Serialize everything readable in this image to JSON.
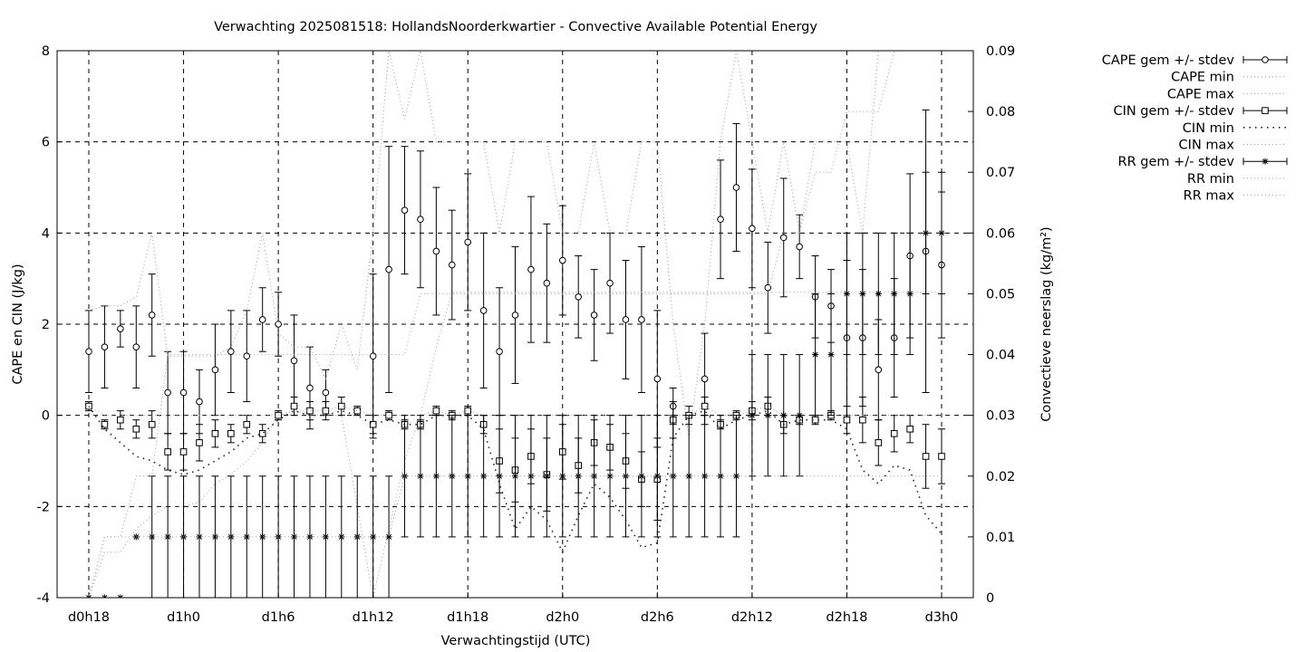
{
  "chart_data": {
    "type": "line",
    "title": "Verwachting 2025081518: HollandsNoorderkwartier - Convective Available Potential Energy",
    "xlabel": "Verwachtingstijd (UTC)",
    "ylabel": "CAPE en CIN (J/kg)",
    "y2label": "Convectieve neerslag (kg/m²)",
    "xlim": [
      0,
      55
    ],
    "ylim": [
      -4,
      8
    ],
    "y2lim": [
      0,
      0.09
    ],
    "grid": true,
    "legend_position": "outside-right",
    "x_ticks": [
      {
        "x": 0,
        "label": "d0h18"
      },
      {
        "x": 6,
        "label": "d1h0"
      },
      {
        "x": 12,
        "label": "d1h6"
      },
      {
        "x": 18,
        "label": "d1h12"
      },
      {
        "x": 24,
        "label": "d1h18"
      },
      {
        "x": 30,
        "label": "d2h0"
      },
      {
        "x": 36,
        "label": "d2h6"
      },
      {
        "x": 42,
        "label": "d2h12"
      },
      {
        "x": 48,
        "label": "d2h18"
      },
      {
        "x": 54,
        "label": "d3h0"
      }
    ],
    "y_ticks": [
      -4,
      -2,
      0,
      2,
      4,
      6,
      8
    ],
    "y2_ticks": [
      {
        "v": 0,
        "label": "0"
      },
      {
        "v": 0.01,
        "label": "0.01"
      },
      {
        "v": 0.02,
        "label": "0.02"
      },
      {
        "v": 0.03,
        "label": "0.03"
      },
      {
        "v": 0.04,
        "label": "0.04"
      },
      {
        "v": 0.05,
        "label": "0.05"
      },
      {
        "v": 0.06,
        "label": "0.06"
      },
      {
        "v": 0.07,
        "label": "0.07"
      },
      {
        "v": 0.08,
        "label": "0.08"
      },
      {
        "v": 0.09,
        "label": "0.09"
      }
    ],
    "x": [
      0,
      1,
      2,
      3,
      4,
      5,
      6,
      7,
      8,
      9,
      10,
      11,
      12,
      13,
      14,
      15,
      16,
      17,
      18,
      19,
      20,
      21,
      22,
      23,
      24,
      25,
      26,
      27,
      28,
      29,
      30,
      31,
      32,
      33,
      34,
      35,
      36,
      37,
      38,
      39,
      40,
      41,
      42,
      43,
      44,
      45,
      46,
      47,
      48,
      49,
      50,
      51,
      52,
      53,
      54
    ],
    "series": [
      {
        "name": "CAPE gem +/- stdev",
        "style": "errorbars-circle",
        "axis": "y",
        "values": [
          1.4,
          1.5,
          1.9,
          1.5,
          2.2,
          0.5,
          0.5,
          0.3,
          1.0,
          1.4,
          1.3,
          2.1,
          2.0,
          1.2,
          0.6,
          0.5,
          null,
          null,
          1.3,
          3.2,
          4.5,
          4.3,
          3.6,
          3.3,
          3.8,
          2.3,
          1.4,
          2.2,
          3.2,
          2.9,
          3.4,
          2.6,
          2.2,
          2.9,
          2.1,
          2.1,
          0.8,
          0.2,
          null,
          0.8,
          4.3,
          5.0,
          4.1,
          2.8,
          3.9,
          3.7,
          2.6,
          2.4,
          1.7,
          1.7,
          1.0,
          1.7,
          3.5,
          3.6,
          3.3
        ],
        "errors": [
          0.9,
          0.9,
          0.4,
          0.9,
          0.9,
          0.9,
          0.9,
          0.7,
          1.0,
          0.9,
          1.0,
          0.7,
          0.7,
          1.0,
          0.9,
          0.5,
          null,
          null,
          1.8,
          2.7,
          1.4,
          1.5,
          1.4,
          1.2,
          1.5,
          1.7,
          1.4,
          1.5,
          1.6,
          1.3,
          1.2,
          0.9,
          1.0,
          1.1,
          1.3,
          1.6,
          1.5,
          0.4,
          null,
          1.0,
          1.3,
          1.4,
          1.3,
          1.0,
          1.3,
          0.7,
          0.9,
          0.8,
          1.7,
          1.5,
          1.1,
          1.3,
          1.8,
          3.1,
          1.6
        ]
      },
      {
        "name": "CAPE min",
        "style": "dotted",
        "axis": "y",
        "values": [
          -4,
          -3,
          -3,
          -2.5,
          -2.2,
          -2.0,
          -2.0,
          -1.9,
          -1.5,
          -1.3,
          -1.0,
          -0.6,
          0.0,
          0.1,
          0.0,
          0.0,
          0.0,
          -2.0,
          -4.0,
          -2.5,
          -1.0,
          0.0,
          1.5,
          2.7,
          2.7,
          2.7,
          2.7,
          2.7,
          2.7,
          2.7,
          2.7,
          2.7,
          2.7,
          2.7,
          2.7,
          2.7,
          2.7,
          2.7,
          2.7,
          2.7,
          2.7,
          2.7,
          2.7,
          2.7,
          2.7,
          2.7,
          2.7,
          2.7,
          2.7,
          2.7,
          2.7,
          2.7,
          2.7,
          2.7,
          2.7
        ]
      },
      {
        "name": "CAPE max",
        "style": "dotted",
        "axis": "y",
        "values": [
          2.3,
          2.4,
          2.4,
          2.6,
          4.0,
          1.3,
          1.3,
          1.3,
          1.3,
          1.5,
          2.3,
          4.0,
          1.8,
          1.5,
          1.5,
          0.8,
          2.0,
          1.0,
          4.0,
          8.0,
          6.5,
          8.0,
          6.0,
          6.0,
          6.0,
          6.0,
          4.0,
          6.0,
          6.0,
          6.0,
          4.0,
          4.0,
          6.0,
          4.0,
          4.0,
          6.0,
          6.0,
          2.0,
          -0.5,
          2.0,
          6.0,
          8.0,
          6.0,
          4.0,
          6.0,
          4.0,
          6.0,
          6.0,
          6.0,
          4.0,
          8.0,
          8.0,
          8.0,
          8.0,
          8.0
        ]
      },
      {
        "name": "CIN gem +/- stdev",
        "style": "errorbars-square",
        "axis": "y",
        "values": [
          0.2,
          -0.2,
          -0.1,
          -0.3,
          -0.2,
          -0.8,
          -0.8,
          -0.6,
          -0.4,
          -0.4,
          -0.2,
          -0.4,
          0.0,
          0.2,
          0.1,
          0.1,
          0.2,
          0.1,
          -0.2,
          0.0,
          -0.2,
          -0.2,
          0.1,
          0.0,
          0.1,
          -0.2,
          -1.0,
          -1.2,
          -0.9,
          -1.3,
          -0.8,
          -1.1,
          -0.6,
          -0.7,
          -1.0,
          -1.4,
          -1.4,
          -0.1,
          0.0,
          0.2,
          -0.2,
          0.0,
          0.1,
          0.2,
          -0.2,
          -0.1,
          -0.1,
          0.0,
          -0.1,
          -0.1,
          -0.6,
          -0.4,
          -0.3,
          -0.9,
          -0.9
        ],
        "errors": [
          0.1,
          0.1,
          0.2,
          0.2,
          0.3,
          0.4,
          0.4,
          0.4,
          0.3,
          0.2,
          0.2,
          0.2,
          0.1,
          0.2,
          0.2,
          0.2,
          0.2,
          0.1,
          0.2,
          0.1,
          0.1,
          0.1,
          0.1,
          0.1,
          0.1,
          0.2,
          0.7,
          0.7,
          0.6,
          0.8,
          0.6,
          0.6,
          0.5,
          0.5,
          0.6,
          0.6,
          0.9,
          0.4,
          0.2,
          0.2,
          0.1,
          0.1,
          0.2,
          0.2,
          0.2,
          0.1,
          0.1,
          0.1,
          0.3,
          0.5,
          0.5,
          0.4,
          0.3,
          0.7,
          0.6
        ]
      },
      {
        "name": "CIN min",
        "style": "dotted-sparse",
        "axis": "y",
        "values": [
          0.2,
          -0.3,
          -0.6,
          -0.9,
          -1.0,
          -1.2,
          -1.3,
          -1.2,
          -1.0,
          -0.8,
          -0.5,
          -0.4,
          -0.1,
          0.1,
          0.0,
          0.0,
          0.1,
          0.0,
          -0.2,
          -0.1,
          -0.2,
          -0.2,
          0.0,
          0.0,
          0.0,
          -0.3,
          -1.5,
          -2.5,
          -2.0,
          -2.3,
          -3.0,
          -2.2,
          -1.5,
          -1.8,
          -2.3,
          -2.9,
          -2.8,
          -0.5,
          0.0,
          0.1,
          -0.3,
          -0.1,
          0.0,
          0.1,
          -0.2,
          -0.1,
          -0.1,
          -0.1,
          -0.3,
          -1.2,
          -1.5,
          -1.1,
          -1.2,
          -2.2,
          -2.6
        ]
      },
      {
        "name": "CIN max",
        "style": "dotted",
        "axis": "y",
        "values": [
          0.2,
          0.0,
          0.0,
          0.0,
          0.0,
          0.0,
          0.0,
          0.0,
          0.0,
          0.0,
          0.0,
          0.0,
          0.0,
          0.1,
          0.1,
          0.1,
          0.2,
          0.1,
          0.0,
          0.0,
          0.0,
          0.0,
          0.1,
          0.0,
          0.1,
          0.0,
          0.0,
          0.0,
          0.0,
          0.0,
          0.0,
          0.0,
          0.0,
          0.0,
          0.0,
          0.0,
          0.0,
          0.0,
          0.0,
          0.2,
          0.0,
          0.0,
          0.1,
          0.2,
          0.0,
          0.0,
          0.0,
          0.0,
          0.0,
          0.0,
          0.0,
          0.0,
          0.0,
          0.0,
          0.0
        ]
      },
      {
        "name": "RR gem +/- stdev",
        "style": "errorbars-star",
        "axis": "y2",
        "values": [
          0,
          0,
          0,
          0.01,
          0.01,
          0.01,
          0.01,
          0.01,
          0.01,
          0.01,
          0.01,
          0.01,
          0.01,
          0.01,
          0.01,
          0.01,
          0.01,
          0.01,
          0.01,
          0.01,
          0.02,
          0.02,
          0.02,
          0.02,
          0.02,
          0.02,
          0.02,
          0.02,
          0.02,
          0.02,
          0.02,
          0.02,
          0.02,
          0.02,
          0.02,
          0.02,
          0.02,
          0.02,
          0.02,
          0.02,
          0.02,
          0.02,
          0.03,
          0.03,
          0.03,
          0.03,
          0.04,
          0.04,
          0.05,
          0.05,
          0.05,
          0.05,
          0.05,
          0.06,
          0.06
        ],
        "errors": [
          null,
          null,
          null,
          null,
          0.01,
          0.01,
          0.01,
          0.01,
          0.01,
          0.01,
          0.01,
          0.01,
          0.01,
          0.01,
          0.01,
          0.01,
          0.01,
          0.01,
          0.01,
          0.01,
          0.01,
          0.01,
          0.01,
          0.01,
          0.01,
          0.01,
          0.01,
          0.01,
          0.01,
          0.01,
          0.01,
          0.01,
          0.01,
          0.01,
          0.01,
          0.01,
          0.01,
          0.01,
          0.01,
          0.01,
          0.01,
          0.01,
          0.01,
          0.01,
          0.01,
          0.01,
          0.01,
          0.01,
          0.01,
          0.01,
          0.01,
          0.01,
          0.01,
          0.01,
          0.01
        ]
      },
      {
        "name": "RR min",
        "style": "dotted",
        "axis": "y2",
        "values": [
          0,
          0.01,
          0.01,
          0.01,
          0.01,
          0.01,
          0.01,
          0.01,
          0.01,
          0.01,
          0.01,
          0.01,
          0.01,
          0.01,
          0.01,
          0.01,
          0.01,
          0.01,
          0.01,
          0.01,
          0.02,
          0.02,
          0.02,
          0.02,
          0.02,
          0.02,
          0.02,
          0.02,
          0.02,
          0.02,
          0.02,
          0.02,
          0.02,
          0.02,
          0.02,
          0.02,
          0.02,
          0.02,
          0.02,
          0.02,
          0.02,
          0.02,
          0.02,
          0.02,
          0.02,
          0.02,
          0.02,
          0.02,
          0.02,
          0.02,
          0.02,
          0.02,
          0.02,
          0.02,
          0.02
        ]
      },
      {
        "name": "RR max",
        "style": "dotted",
        "axis": "y2",
        "values": [
          0,
          0.01,
          0.01,
          0.02,
          0.02,
          0.04,
          0.04,
          0.04,
          0.04,
          0.04,
          0.04,
          0.04,
          0.04,
          0.04,
          0.04,
          0.04,
          0.04,
          0.04,
          0.04,
          0.04,
          0.04,
          0.05,
          0.05,
          0.05,
          0.05,
          0.05,
          0.05,
          0.05,
          0.05,
          0.05,
          0.05,
          0.05,
          0.05,
          0.05,
          0.05,
          0.05,
          0.05,
          0.05,
          0.05,
          0.05,
          0.05,
          0.05,
          0.05,
          0.05,
          0.06,
          0.06,
          0.07,
          0.07,
          0.08,
          0.08,
          0.08,
          0.09,
          0.09,
          0.09,
          0.09
        ]
      }
    ]
  }
}
